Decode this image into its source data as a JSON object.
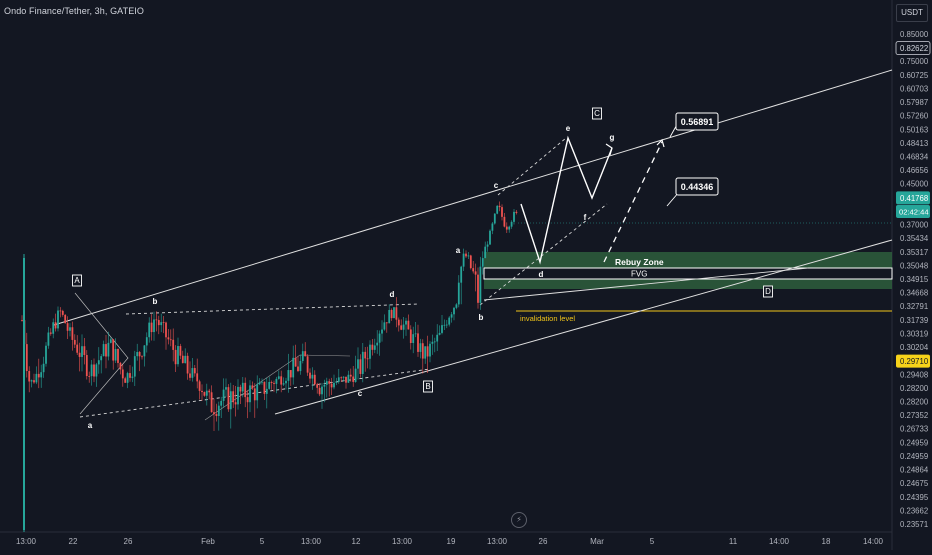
{
  "header": {
    "title": "Ondo Finance/Tether, 3h, GATEIO",
    "currency": "USDT",
    "replay_icon": "lightning-icon"
  },
  "colors": {
    "background": "#131722",
    "bull": "#26a69a",
    "bear": "#ef5350",
    "zone": "#2e5e3c",
    "invalidation": "#f0c419",
    "annotation": "#ffffff",
    "last_price_bg": "#26a69a",
    "highlight_price_bg": "#f7d31a"
  },
  "price_scale": {
    "labels": [
      "0.85000",
      "0.82622",
      "0.75000",
      "0.60725",
      "0.60703",
      "0.57987",
      "0.57260",
      "0.50163",
      "0.48413",
      "0.46834",
      "0.46656",
      "0.45000",
      "0.41768",
      "02:42:44",
      "0.37000",
      "0.35434",
      "0.35317",
      "0.35048",
      "0.34915",
      "0.34668",
      "0.32791",
      "0.31739",
      "0.30319",
      "0.30204",
      "0.29710",
      "0.29408",
      "0.28200",
      "0.28200",
      "0.27352",
      "0.26733",
      "0.24959",
      "0.24959",
      "0.24864",
      "0.24675",
      "0.24395",
      "0.23662",
      "0.23571"
    ],
    "boxed": [
      "0.82622"
    ],
    "last_price": "0.41768",
    "countdown": "02:42:44",
    "highlight": "0.29710"
  },
  "time_axis": [
    "13:00",
    "22",
    "26",
    "Feb",
    "5",
    "13:00",
    "12",
    "13:00",
    "19",
    "13:00",
    "26",
    "Mar",
    "5",
    "11",
    "14:00",
    "18",
    "14:00"
  ],
  "chart_data": {
    "type": "candlestick",
    "symbol": "Ondo Finance/Tether",
    "interval": "3h",
    "exchange": "GATEIO",
    "quote": "USDT",
    "last_price": 0.41768,
    "key_points": [
      {
        "label": "A",
        "price": 0.345
      },
      {
        "label": "a",
        "price": 0.282
      },
      {
        "label": "b",
        "price": 0.337
      },
      {
        "label": "c",
        "price": 0.295
      },
      {
        "label": "d",
        "price": 0.342
      },
      {
        "label": "B",
        "price": 0.302
      },
      {
        "label": "a",
        "price": 0.37
      },
      {
        "label": "b",
        "price": 0.347
      },
      {
        "label": "c",
        "price": 0.45
      }
    ],
    "projection": [
      {
        "label": "d",
        "price": 0.363
      },
      {
        "label": "e",
        "price": 0.565
      },
      {
        "label": "f",
        "price": 0.43
      },
      {
        "label": "g",
        "price": 0.555
      },
      {
        "label": "C",
        "price": 0.6
      }
    ],
    "targets": [
      "0.56891",
      "0.44346"
    ],
    "zones": [
      {
        "name": "Rebuy Zone",
        "from": 0.353,
        "to": 0.37
      },
      {
        "name": "FVG",
        "from": 0.3505,
        "to": 0.3545
      }
    ],
    "invalidation": {
      "name": "invalidation level",
      "price": 0.3335
    },
    "wave_labels": {
      "A": "A",
      "a1": "a",
      "b1": "b",
      "d1": "d",
      "c1": "c",
      "B": "B",
      "a2": "a",
      "b2": "b",
      "c2": "c",
      "d2": "d",
      "e": "e",
      "f": "f",
      "g": "g",
      "C": "C",
      "D": "D"
    }
  }
}
